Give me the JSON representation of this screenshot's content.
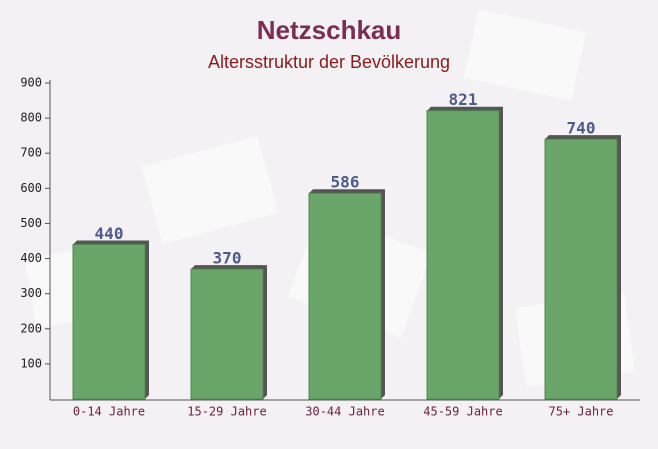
{
  "chart_data": {
    "type": "bar",
    "title": "Netzschkau",
    "subtitle": "Altersstruktur der Bevölkerung",
    "categories": [
      "0-14 Jahre",
      "15-29 Jahre",
      "30-44 Jahre",
      "45-59 Jahre",
      "75+ Jahre"
    ],
    "values": [
      440,
      370,
      586,
      821,
      740
    ],
    "color": "#6aa56a",
    "ylim": [
      0,
      900
    ],
    "yticks": [
      100,
      200,
      300,
      400,
      500,
      600,
      700,
      800,
      900
    ]
  }
}
